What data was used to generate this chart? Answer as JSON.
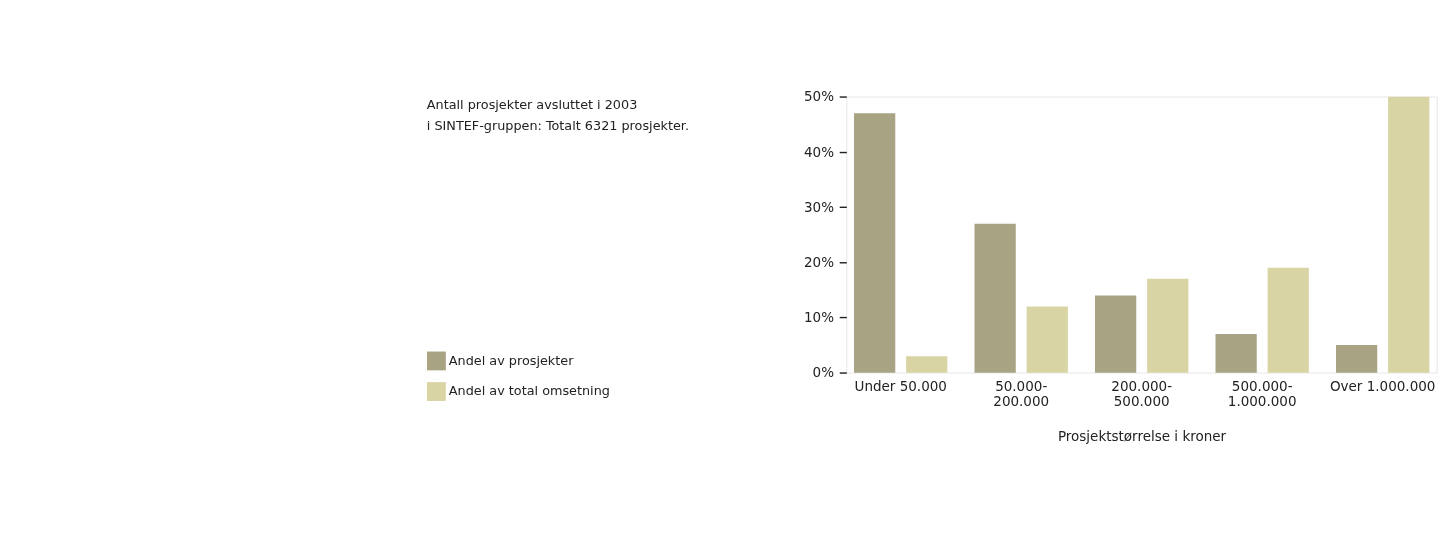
{
  "chart_data": {
    "type": "bar",
    "title": [
      "Antall prosjekter avsluttet i 2003",
      "i SINTEF-gruppen: Totalt 6321 prosjekter."
    ],
    "xlabel": "Prosjektstørrelse i kroner",
    "categories": [
      "Under 50.000",
      "50.000-200.000",
      "200.000-500.000",
      "500.000-1.000.000",
      "Over 1.000.000"
    ],
    "series": [
      {
        "name": "Andel av prosjekter",
        "color": "#a8a383",
        "values": [
          47,
          27,
          14,
          7,
          5
        ]
      },
      {
        "name": "Andel av total omsetning",
        "color": "#d9d4a4",
        "values": [
          3,
          12,
          17,
          19,
          50
        ]
      }
    ],
    "ylim": [
      0,
      50
    ],
    "yticks": [
      {
        "value": 0,
        "label": "0%"
      },
      {
        "value": 10,
        "label": "10%"
      },
      {
        "value": 20,
        "label": "20%"
      },
      {
        "value": 30,
        "label": "30%"
      },
      {
        "value": 40,
        "label": "40%"
      },
      {
        "value": 50,
        "label": "50%"
      }
    ],
    "legend": "bottom left",
    "grid": false
  }
}
